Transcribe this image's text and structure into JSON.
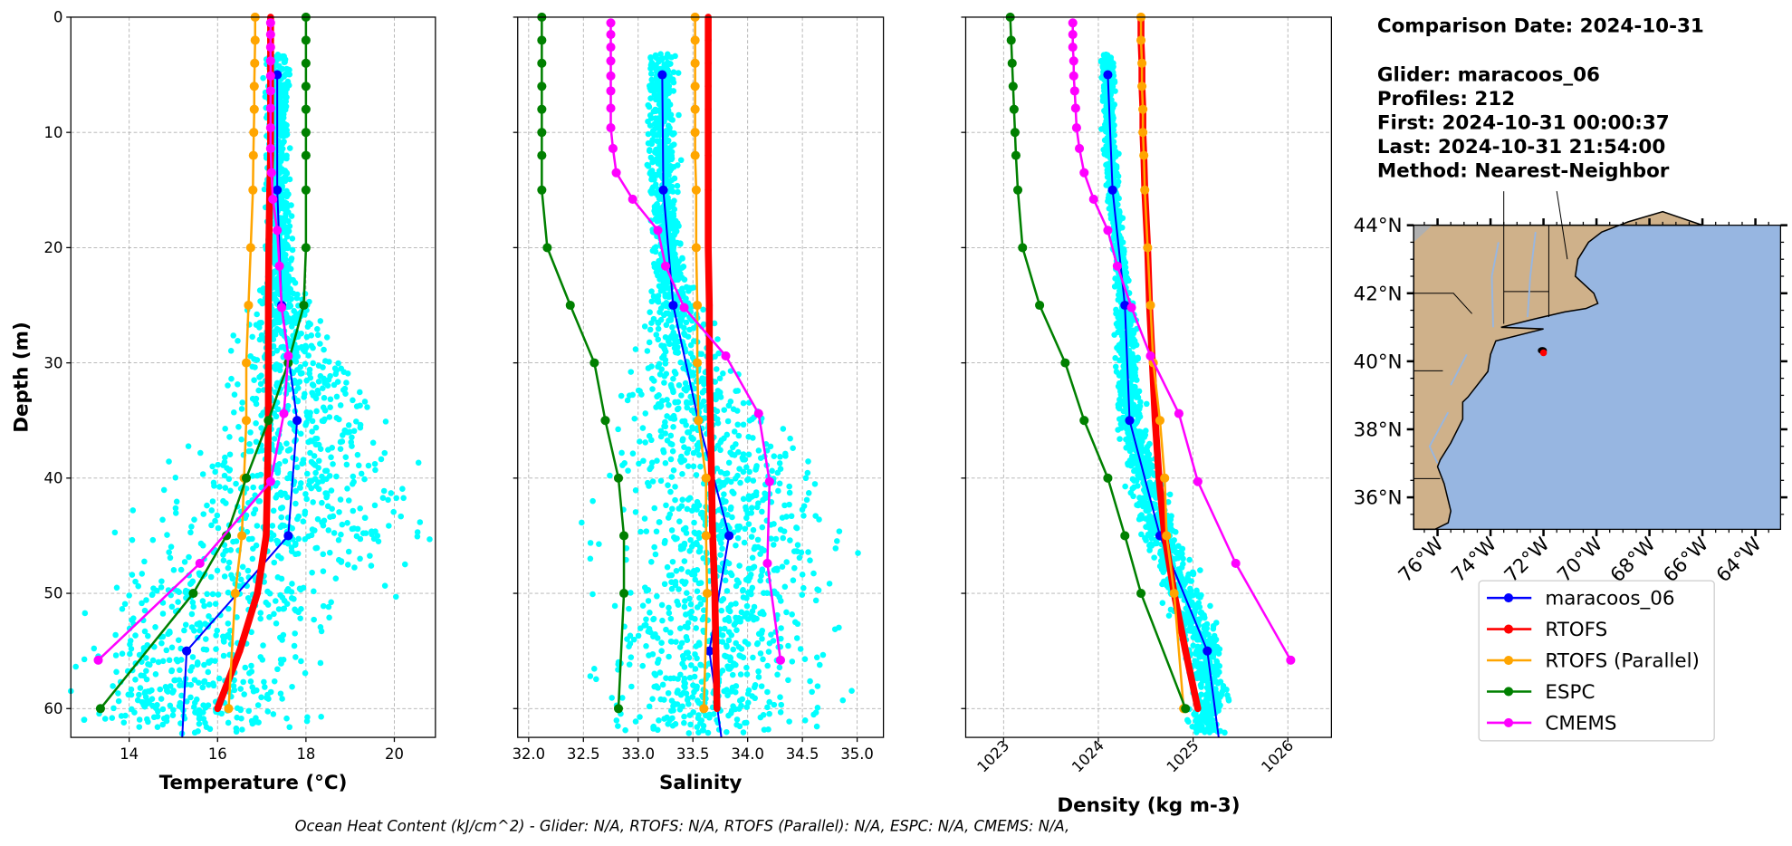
{
  "info": {
    "comparison_date": "Comparison Date: 2024-10-31",
    "glider": "Glider: maracoos_06",
    "profiles": "Profiles: 212",
    "first": "First: 2024-10-31 00:00:37",
    "last": "Last: 2024-10-31 21:54:00",
    "method": "Method: Nearest-Neighbor"
  },
  "footer": "Ocean Heat Content (kJ/cm^2) - Glider: N/A,  RTOFS: N/A,  RTOFS (Parallel): N/A,  ESPC: N/A,  CMEMS: N/A,",
  "chart_data": {
    "type": "line",
    "ylabel": "Depth (m)",
    "ylim": [
      62.5,
      0
    ],
    "yticks": [
      0,
      10,
      20,
      30,
      40,
      50,
      60
    ],
    "grid": true,
    "legend_placement": "lower-right",
    "panels": [
      {
        "var": "temperature",
        "xlabel": "Temperature (°C)",
        "xlim": [
          12.68,
          20.93
        ],
        "xticks": [
          "14",
          "16",
          "18",
          "20"
        ],
        "rotate_ticks": false
      },
      {
        "var": "salinity",
        "xlabel": "Salinity",
        "xlim": [
          31.9,
          35.24
        ],
        "xticks": [
          "32.0",
          "32.5",
          "33.0",
          "33.5",
          "34.0",
          "34.5",
          "35.0"
        ],
        "rotate_ticks": false
      },
      {
        "var": "density",
        "xlabel": "Density (kg m-3)",
        "xlim": [
          1022.6,
          1026.46
        ],
        "xticks": [
          "1023",
          "1024",
          "1025",
          "1026"
        ],
        "rotate_ticks": true
      }
    ],
    "raw_glider_color": "#00ffff",
    "series": [
      {
        "name": "maracoos_06",
        "color": "#0000ff",
        "width": 1.6,
        "extend_to": 62.5,
        "depth": [
          5,
          15,
          25,
          35,
          45,
          55
        ],
        "temperature": [
          17.35,
          17.35,
          17.45,
          17.8,
          17.6,
          15.3
        ],
        "salinity": [
          33.22,
          33.23,
          33.32,
          33.55,
          33.83,
          33.65
        ],
        "density": [
          1024.1,
          1024.15,
          1024.28,
          1024.33,
          1024.65,
          1025.15
        ],
        "end_values": {
          "temperature": 15.2,
          "salinity": 33.76,
          "density": 1025.27
        }
      },
      {
        "name": "RTOFS",
        "color": "#ff0000",
        "width": 6,
        "depth": [
          0,
          2,
          4,
          6,
          8,
          10,
          12,
          15,
          20,
          25,
          30,
          35,
          40,
          45,
          50,
          55,
          60
        ],
        "temperature": [
          17.2,
          17.2,
          17.2,
          17.2,
          17.2,
          17.2,
          17.2,
          17.18,
          17.16,
          17.15,
          17.15,
          17.15,
          17.13,
          17.1,
          16.9,
          16.5,
          16.0
        ],
        "salinity": [
          33.64,
          33.64,
          33.64,
          33.64,
          33.64,
          33.64,
          33.64,
          33.64,
          33.64,
          33.65,
          33.65,
          33.66,
          33.67,
          33.68,
          33.7,
          33.71,
          33.72
        ],
        "density": [
          1024.45,
          1024.45,
          1024.46,
          1024.46,
          1024.47,
          1024.47,
          1024.48,
          1024.49,
          1024.52,
          1024.54,
          1024.57,
          1024.6,
          1024.64,
          1024.7,
          1024.8,
          1024.92,
          1025.05
        ]
      },
      {
        "name": "RTOFS (Parallel)",
        "color": "#ffa500",
        "width": 2,
        "depth": [
          0,
          2,
          4,
          6,
          8,
          10,
          12,
          15,
          20,
          25,
          30,
          35,
          40,
          45,
          50,
          60
        ],
        "temperature": [
          16.85,
          16.85,
          16.84,
          16.83,
          16.83,
          16.82,
          16.81,
          16.8,
          16.75,
          16.7,
          16.65,
          16.65,
          16.6,
          16.55,
          16.4,
          16.25
        ],
        "salinity": [
          33.52,
          33.52,
          33.52,
          33.52,
          33.52,
          33.52,
          33.52,
          33.53,
          33.53,
          33.54,
          33.54,
          33.55,
          33.62,
          33.62,
          33.63,
          33.6
        ],
        "density": [
          1024.45,
          1024.45,
          1024.46,
          1024.46,
          1024.47,
          1024.47,
          1024.48,
          1024.49,
          1024.52,
          1024.55,
          1024.58,
          1024.65,
          1024.7,
          1024.72,
          1024.8,
          1024.9
        ]
      },
      {
        "name": "ESPC",
        "color": "#008000",
        "width": 2,
        "depth": [
          0,
          2,
          4,
          6,
          8,
          10,
          12,
          15,
          20,
          25,
          30,
          35,
          40,
          45,
          50,
          60
        ],
        "temperature": [
          18.0,
          18.0,
          18.0,
          18.0,
          18.0,
          18.0,
          18.0,
          18.0,
          18.0,
          17.95,
          17.6,
          17.15,
          16.65,
          16.2,
          15.45,
          13.35
        ],
        "salinity": [
          32.12,
          32.12,
          32.12,
          32.12,
          32.12,
          32.12,
          32.12,
          32.12,
          32.17,
          32.38,
          32.6,
          32.7,
          32.82,
          32.87,
          32.87,
          32.82
        ],
        "density": [
          1023.07,
          1023.08,
          1023.09,
          1023.1,
          1023.11,
          1023.12,
          1023.13,
          1023.15,
          1023.2,
          1023.38,
          1023.65,
          1023.85,
          1024.1,
          1024.28,
          1024.45,
          1024.92
        ]
      },
      {
        "name": "CMEMS",
        "color": "#ff00ff",
        "width": 2,
        "depth": [
          0.5,
          1.5,
          2.6,
          3.8,
          5.1,
          6.4,
          7.9,
          9.6,
          11.4,
          13.5,
          15.8,
          18.5,
          21.6,
          25.2,
          29.4,
          34.4,
          40.3,
          47.4,
          55.8
        ],
        "temperature": [
          17.2,
          17.2,
          17.2,
          17.2,
          17.2,
          17.2,
          17.2,
          17.2,
          17.2,
          17.22,
          17.25,
          17.35,
          17.4,
          17.45,
          17.6,
          17.5,
          17.2,
          15.6,
          13.3
        ],
        "salinity": [
          32.75,
          32.75,
          32.75,
          32.75,
          32.75,
          32.75,
          32.75,
          32.75,
          32.77,
          32.8,
          32.95,
          33.18,
          33.25,
          33.42,
          33.8,
          34.1,
          34.2,
          34.18,
          34.3
        ],
        "density": [
          1023.73,
          1023.73,
          1023.73,
          1023.74,
          1023.74,
          1023.75,
          1023.76,
          1023.77,
          1023.8,
          1023.85,
          1023.95,
          1024.1,
          1024.2,
          1024.35,
          1024.55,
          1024.85,
          1025.05,
          1025.45,
          1026.03
        ]
      }
    ]
  },
  "map": {
    "lon_range": [
      -76.9,
      -63.05
    ],
    "lat_range": [
      35.06,
      44.0
    ],
    "lon_ticks": [
      "76°W",
      "74°W",
      "72°W",
      "70°W",
      "68°W",
      "66°W",
      "64°W"
    ],
    "lat_ticks": [
      "36°N",
      "38°N",
      "40°N",
      "42°N",
      "44°N"
    ],
    "glider_position": {
      "lon": -72.0,
      "lat": 40.25
    },
    "ocean_color": "#97b6e1",
    "land_color": "#cfb18a"
  }
}
